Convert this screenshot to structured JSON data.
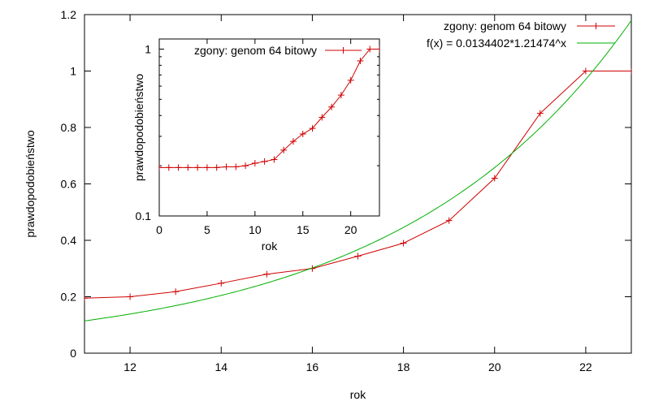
{
  "chart_data": [
    {
      "type": "line",
      "xlabel": "rok",
      "ylabel": "prawdopodobieństwo",
      "xlim": [
        11,
        23
      ],
      "ylim": [
        0,
        1.2
      ],
      "xticks": [
        12,
        14,
        16,
        18,
        20,
        22
      ],
      "yticks": [
        0,
        0.2,
        0.4,
        0.6,
        0.8,
        1,
        1.2
      ],
      "ytick_labels": [
        "0",
        "0.2",
        "0.4",
        "0.6",
        "0.8",
        "1",
        "1.2"
      ],
      "legend_position": "top-right",
      "series": [
        {
          "name": "zgony: genom 64 bitowy",
          "color": "#d00000",
          "marker": "plus",
          "x": [
            11,
            12,
            13,
            14,
            15,
            16,
            17,
            18,
            19,
            20,
            21,
            22,
            23
          ],
          "y": [
            0.195,
            0.2,
            0.218,
            0.248,
            0.28,
            0.3,
            0.344,
            0.39,
            0.47,
            0.62,
            0.85,
            1.0,
            1.0
          ]
        },
        {
          "name": "f(x) = 0.0134402*1.21474^x",
          "color": "#00b000",
          "marker": "none",
          "function": {
            "a": 0.0134402,
            "b": 1.21474
          }
        }
      ]
    },
    {
      "type": "line",
      "xlabel": "rok",
      "ylabel": "prawdopodobieństwo",
      "xlim": [
        0,
        23
      ],
      "ylim": [
        0.1,
        1.15
      ],
      "yscale": "log",
      "xticks": [
        0,
        5,
        10,
        15,
        20
      ],
      "yticks": [
        0.1,
        1
      ],
      "ytick_labels": [
        "0.1",
        "1"
      ],
      "legend_position": "top-left",
      "series": [
        {
          "name": "zgony: genom 64 bitowy",
          "color": "#d00000",
          "marker": "plus",
          "x": [
            0,
            1,
            2,
            3,
            4,
            5,
            6,
            7,
            8,
            9,
            10,
            11,
            12,
            13,
            14,
            15,
            16,
            17,
            18,
            19,
            20,
            21,
            22,
            23
          ],
          "y": [
            0.195,
            0.195,
            0.195,
            0.195,
            0.195,
            0.195,
            0.195,
            0.197,
            0.197,
            0.2,
            0.207,
            0.212,
            0.218,
            0.248,
            0.28,
            0.31,
            0.335,
            0.39,
            0.45,
            0.53,
            0.65,
            0.85,
            1.0,
            1.0
          ]
        }
      ]
    }
  ]
}
